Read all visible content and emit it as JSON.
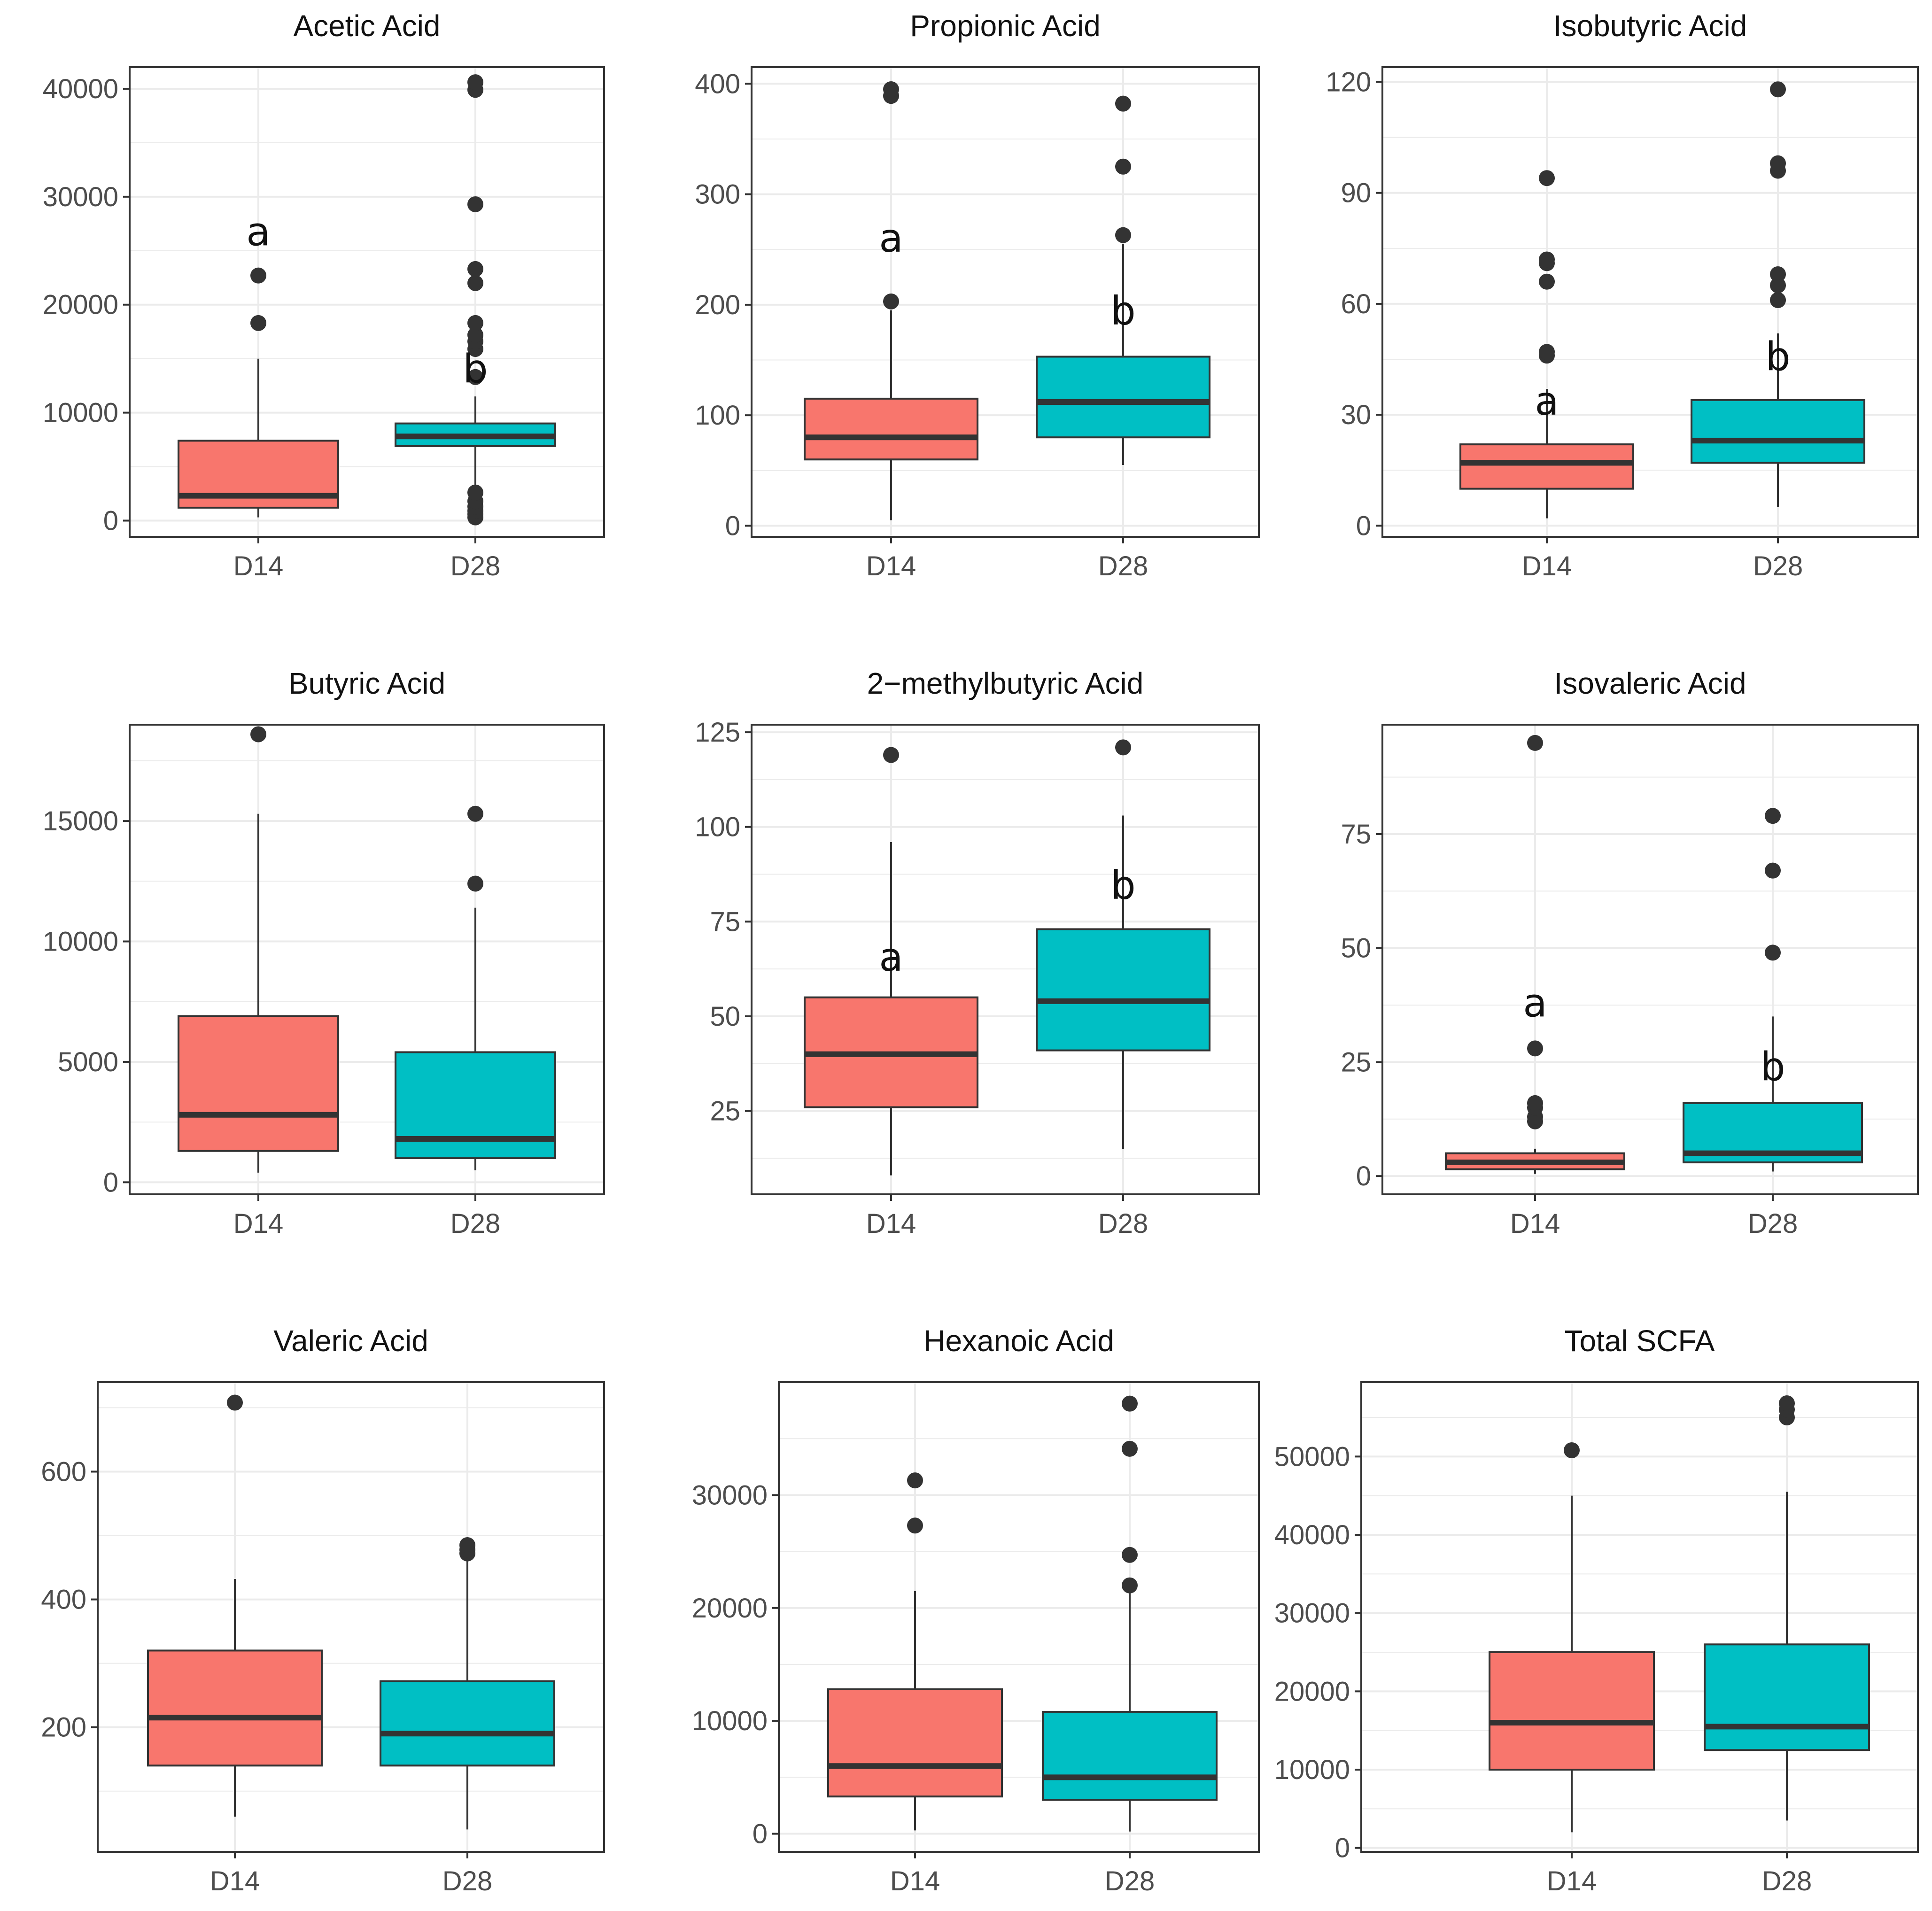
{
  "colors": {
    "D14": "#F8766D",
    "D28": "#00BFC4",
    "outline": "#333333",
    "grid": "#ebebeb",
    "frame": "#333333"
  },
  "chart_data": [
    {
      "type": "box",
      "title": "Acetic Acid",
      "categories": [
        "D14",
        "D28"
      ],
      "ylim": [
        -1500,
        42000
      ],
      "yticks": [
        0,
        10000,
        20000,
        30000,
        40000
      ],
      "boxes": [
        {
          "group": "D14",
          "min": 300,
          "q1": 1200,
          "median": 2300,
          "q3": 7400,
          "max": 15000,
          "outliers": [
            18300,
            22700
          ]
        },
        {
          "group": "D28",
          "min": 3300,
          "q1": 6900,
          "median": 7800,
          "q3": 9000,
          "max": 11500,
          "outliers": [
            300,
            600,
            900,
            1300,
            1800,
            2600,
            13300,
            15900,
            16600,
            17200,
            18300,
            22000,
            23300,
            29300,
            39900,
            40600
          ]
        }
      ],
      "letters": [
        {
          "group": "D14",
          "text": "a",
          "y": 25500
        },
        {
          "group": "D28",
          "text": "b",
          "y": 12800
        }
      ]
    },
    {
      "type": "box",
      "title": "Propionic Acid",
      "categories": [
        "D14",
        "D28"
      ],
      "ylim": [
        -10,
        415
      ],
      "yticks": [
        0,
        100,
        200,
        300,
        400
      ],
      "boxes": [
        {
          "group": "D14",
          "min": 5,
          "q1": 60,
          "median": 80,
          "q3": 115,
          "max": 195,
          "outliers": [
            203,
            389,
            395
          ]
        },
        {
          "group": "D28",
          "min": 55,
          "q1": 80,
          "median": 112,
          "q3": 153,
          "max": 255,
          "outliers": [
            263,
            325,
            382
          ]
        }
      ],
      "letters": [
        {
          "group": "D14",
          "text": "a",
          "y": 248
        },
        {
          "group": "D28",
          "text": "b",
          "y": 182
        }
      ]
    },
    {
      "type": "box",
      "title": "Isobutyric Acid",
      "categories": [
        "D14",
        "D28"
      ],
      "ylim": [
        -3,
        124
      ],
      "yticks": [
        0,
        30,
        60,
        90,
        120
      ],
      "boxes": [
        {
          "group": "D14",
          "min": 2,
          "q1": 10,
          "median": 17,
          "q3": 22,
          "max": 37,
          "outliers": [
            46,
            47,
            66,
            71,
            72,
            94
          ]
        },
        {
          "group": "D28",
          "min": 5,
          "q1": 17,
          "median": 23,
          "q3": 34,
          "max": 52,
          "outliers": [
            61,
            65,
            68,
            96,
            98,
            118
          ]
        }
      ],
      "letters": [
        {
          "group": "D14",
          "text": "a",
          "y": 30
        },
        {
          "group": "D28",
          "text": "b",
          "y": 42
        }
      ]
    },
    {
      "type": "box",
      "title": "Butyric Acid",
      "categories": [
        "D14",
        "D28"
      ],
      "ylim": [
        -500,
        19000
      ],
      "yticks": [
        0,
        5000,
        10000,
        15000
      ],
      "boxes": [
        {
          "group": "D14",
          "min": 400,
          "q1": 1300,
          "median": 2800,
          "q3": 6900,
          "max": 15300,
          "outliers": [
            18600
          ]
        },
        {
          "group": "D28",
          "min": 500,
          "q1": 1000,
          "median": 1800,
          "q3": 5400,
          "max": 11400,
          "outliers": [
            12400,
            15300
          ]
        }
      ],
      "letters": []
    },
    {
      "type": "box",
      "title": "2−methylbutyric Acid",
      "categories": [
        "D14",
        "D28"
      ],
      "ylim": [
        3,
        127
      ],
      "yticks": [
        25,
        50,
        75,
        100,
        125
      ],
      "boxes": [
        {
          "group": "D14",
          "min": 8,
          "q1": 26,
          "median": 40,
          "q3": 55,
          "max": 96,
          "outliers": [
            119
          ]
        },
        {
          "group": "D28",
          "min": 15,
          "q1": 41,
          "median": 54,
          "q3": 73,
          "max": 103,
          "outliers": [
            121
          ]
        }
      ],
      "letters": [
        {
          "group": "D14",
          "text": "a",
          "y": 62
        },
        {
          "group": "D28",
          "text": "b",
          "y": 81
        }
      ]
    },
    {
      "type": "box",
      "title": "Isovaleric Acid",
      "categories": [
        "D14",
        "D28"
      ],
      "ylim": [
        -4,
        99
      ],
      "yticks": [
        0,
        25,
        50,
        75
      ],
      "boxes": [
        {
          "group": "D14",
          "min": 0.5,
          "q1": 1.5,
          "median": 3,
          "q3": 5,
          "max": 6,
          "outliers": [
            12,
            13,
            15,
            16,
            28,
            95
          ]
        },
        {
          "group": "D28",
          "min": 1,
          "q1": 3,
          "median": 5,
          "q3": 16,
          "max": 35,
          "outliers": [
            49,
            67,
            79
          ]
        }
      ],
      "letters": [
        {
          "group": "D14",
          "text": "a",
          "y": 35
        },
        {
          "group": "D28",
          "text": "b",
          "y": 21
        }
      ]
    },
    {
      "type": "box",
      "title": "Valeric Acid",
      "categories": [
        "D14",
        "D28"
      ],
      "ylim": [
        5,
        740
      ],
      "yticks": [
        200,
        400,
        600
      ],
      "boxes": [
        {
          "group": "D14",
          "min": 60,
          "q1": 140,
          "median": 215,
          "q3": 320,
          "max": 432,
          "outliers": [
            708
          ]
        },
        {
          "group": "D28",
          "min": 40,
          "q1": 140,
          "median": 190,
          "q3": 272,
          "max": 460,
          "outliers": [
            472,
            478,
            485
          ]
        }
      ],
      "letters": []
    },
    {
      "type": "box",
      "title": "Hexanoic Acid",
      "categories": [
        "D14",
        "D28"
      ],
      "ylim": [
        -1600,
        40000
      ],
      "yticks": [
        0,
        10000,
        20000,
        30000
      ],
      "boxes": [
        {
          "group": "D14",
          "min": 300,
          "q1": 3300,
          "median": 6000,
          "q3": 12800,
          "max": 21500,
          "outliers": [
            27300,
            31300
          ]
        },
        {
          "group": "D28",
          "min": 200,
          "q1": 3000,
          "median": 5000,
          "q3": 10800,
          "max": 21400,
          "outliers": [
            22000,
            24700,
            34100,
            38100
          ]
        }
      ],
      "letters": []
    },
    {
      "type": "box",
      "title": "Total SCFA",
      "categories": [
        "D14",
        "D28"
      ],
      "ylim": [
        -500,
        59500
      ],
      "yticks": [
        0,
        10000,
        20000,
        30000,
        40000,
        50000
      ],
      "boxes": [
        {
          "group": "D14",
          "min": 2000,
          "q1": 10000,
          "median": 16000,
          "q3": 25000,
          "max": 45000,
          "outliers": [
            50800
          ]
        },
        {
          "group": "D28",
          "min": 3500,
          "q1": 12500,
          "median": 15500,
          "q3": 26000,
          "max": 45500,
          "outliers": [
            55000,
            56000,
            56800
          ]
        }
      ],
      "letters": []
    }
  ]
}
